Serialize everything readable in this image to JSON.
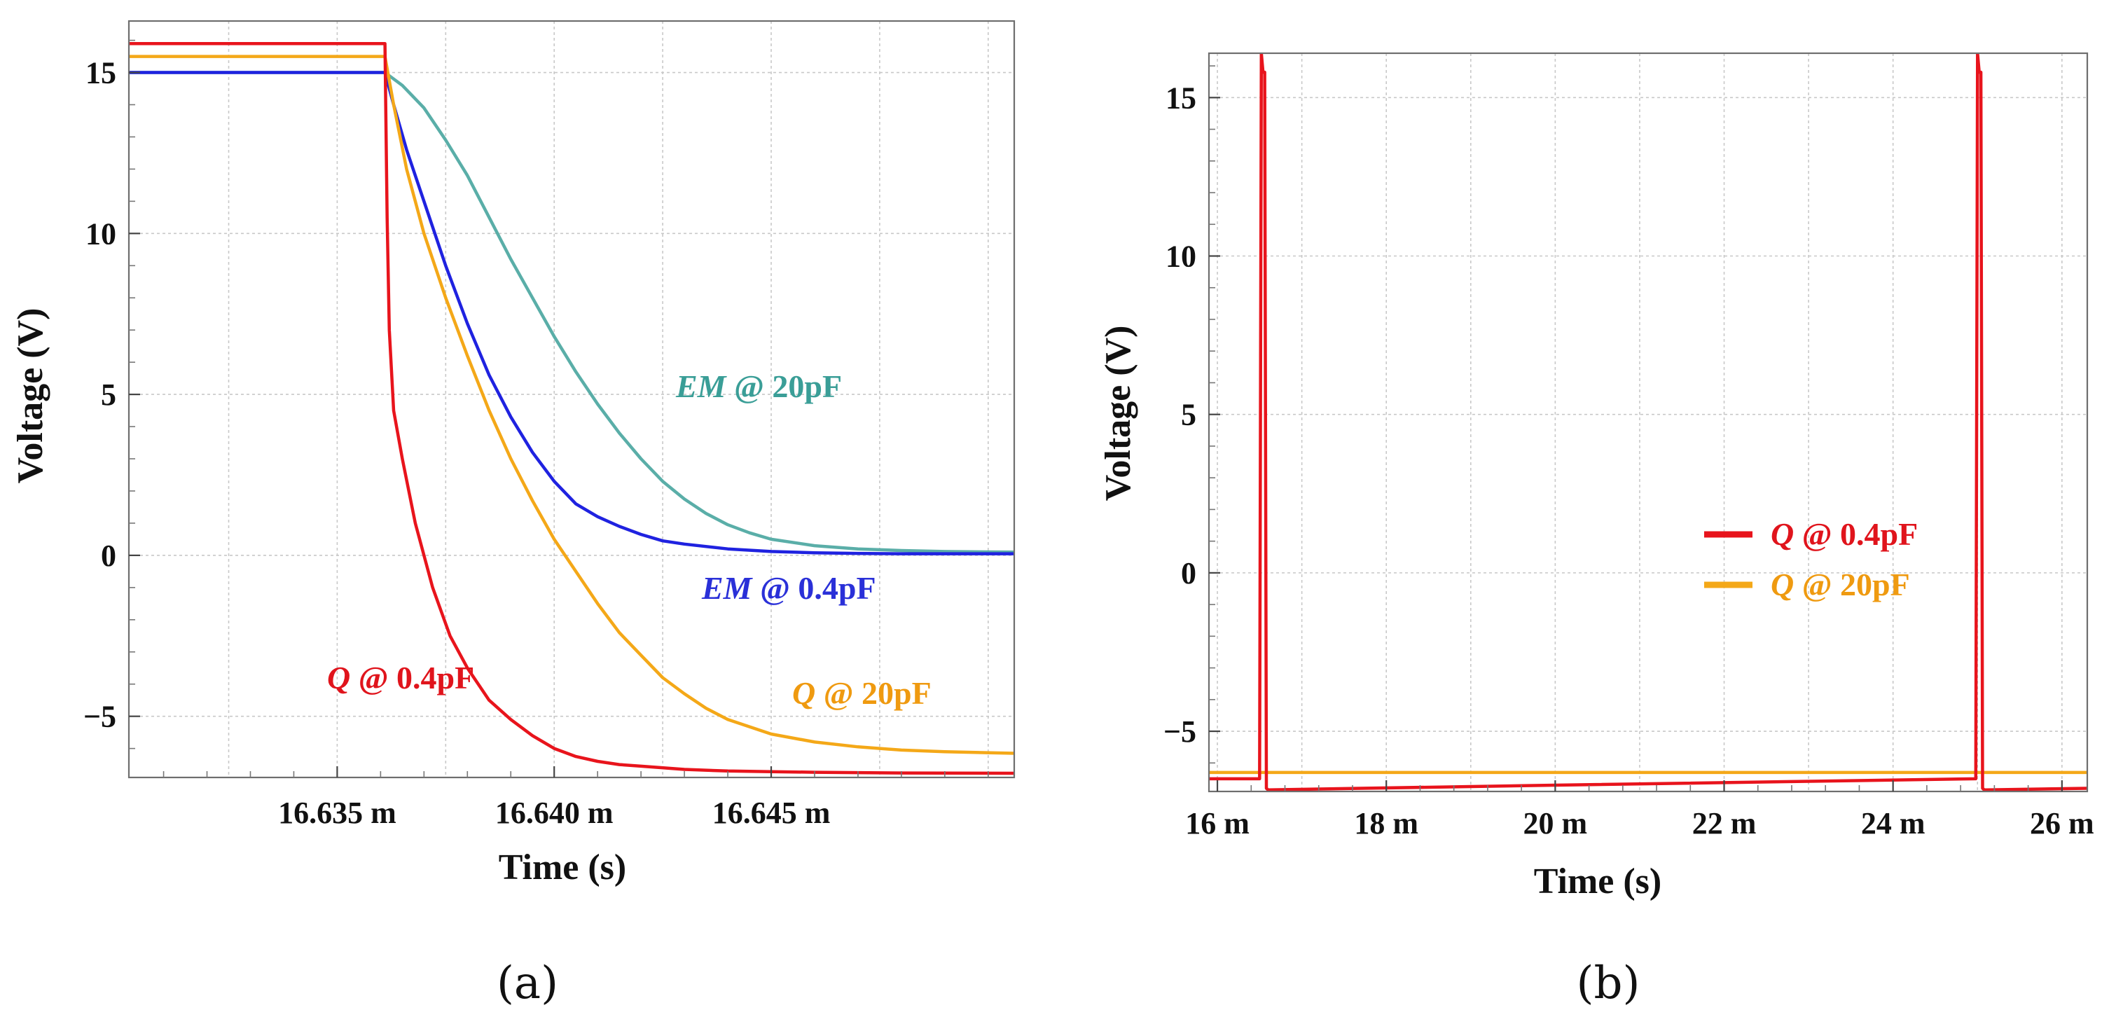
{
  "chart_data": [
    {
      "type": "line",
      "panel_label": "(a)",
      "xlabel": "Time (s)",
      "ylabel": "Voltage (V)",
      "xlim": [
        16.6302,
        16.6506
      ],
      "ylim": [
        -6.9,
        16.6
      ],
      "xticks": [
        16.635,
        16.64,
        16.645
      ],
      "xtick_labels": [
        "16.635 m",
        "16.640 m",
        "16.645 m"
      ],
      "yticks": [
        15,
        10,
        5,
        0,
        -5
      ],
      "ytick_labels": [
        "15",
        "10",
        "5",
        "0",
        "−5"
      ],
      "grid": true,
      "series": [
        {
          "name": "EM @ 20pF",
          "color": "#5aaea8",
          "annotation_parts": [
            "EM",
            " @ 20pF"
          ],
          "x": [
            16.6302,
            16.6361,
            16.6365,
            16.637,
            16.6375,
            16.638,
            16.6385,
            16.639,
            16.6395,
            16.64,
            16.6405,
            16.641,
            16.6415,
            16.642,
            16.6425,
            16.643,
            16.6435,
            16.644,
            16.6445,
            16.645,
            16.646,
            16.647,
            16.648,
            16.649,
            16.6506
          ],
          "values": [
            15.0,
            15.0,
            14.6,
            13.9,
            12.9,
            11.8,
            10.5,
            9.2,
            8.0,
            6.8,
            5.7,
            4.7,
            3.8,
            3.0,
            2.3,
            1.75,
            1.3,
            0.95,
            0.7,
            0.5,
            0.3,
            0.2,
            0.15,
            0.12,
            0.1
          ]
        },
        {
          "name": "EM @ 0.4pF",
          "color": "#1f22e0",
          "annotation_parts": [
            "EM",
            " @ 0.4pF"
          ],
          "x": [
            16.6302,
            16.6361,
            16.6363,
            16.6366,
            16.637,
            16.6375,
            16.638,
            16.6385,
            16.639,
            16.6395,
            16.64,
            16.6405,
            16.641,
            16.6415,
            16.642,
            16.6425,
            16.643,
            16.644,
            16.645,
            16.646,
            16.647,
            16.648,
            16.649,
            16.6506
          ],
          "values": [
            15.0,
            15.0,
            14.0,
            12.6,
            11.0,
            9.0,
            7.2,
            5.6,
            4.3,
            3.2,
            2.3,
            1.6,
            1.2,
            0.9,
            0.65,
            0.45,
            0.35,
            0.2,
            0.12,
            0.08,
            0.06,
            0.05,
            0.05,
            0.05
          ]
        },
        {
          "name": "Q @ 20pF",
          "color": "#f4a818",
          "annotation_parts": [
            "Q",
            " @ 20pF"
          ],
          "x": [
            16.6302,
            16.6361,
            16.6363,
            16.6366,
            16.637,
            16.6375,
            16.638,
            16.6385,
            16.639,
            16.6395,
            16.64,
            16.6405,
            16.641,
            16.6415,
            16.642,
            16.6425,
            16.643,
            16.6435,
            16.644,
            16.645,
            16.646,
            16.647,
            16.648,
            16.649,
            16.6506
          ],
          "values": [
            15.5,
            15.5,
            14.0,
            12.0,
            10.0,
            8.0,
            6.2,
            4.5,
            3.0,
            1.7,
            0.5,
            -0.5,
            -1.5,
            -2.4,
            -3.1,
            -3.8,
            -4.3,
            -4.75,
            -5.1,
            -5.55,
            -5.8,
            -5.95,
            -6.05,
            -6.1,
            -6.15
          ]
        },
        {
          "name": "Q @ 0.4pF",
          "color": "#e8141c",
          "annotation_parts": [
            "Q",
            " @ 0.4pF"
          ],
          "x": [
            16.6302,
            16.6361,
            16.63615,
            16.6362,
            16.6363,
            16.6365,
            16.6368,
            16.6372,
            16.6376,
            16.638,
            16.6385,
            16.639,
            16.6395,
            16.64,
            16.6405,
            16.641,
            16.6415,
            16.642,
            16.643,
            16.644,
            16.645,
            16.646,
            16.647,
            16.648,
            16.6506
          ],
          "values": [
            15.9,
            15.9,
            10.5,
            7.0,
            4.5,
            3.0,
            1.0,
            -1.0,
            -2.5,
            -3.5,
            -4.5,
            -5.1,
            -5.6,
            -6.0,
            -6.25,
            -6.4,
            -6.5,
            -6.55,
            -6.65,
            -6.7,
            -6.72,
            -6.74,
            -6.75,
            -6.76,
            -6.77
          ]
        }
      ]
    },
    {
      "type": "line",
      "panel_label": "(b)",
      "xlabel": "Time (s)",
      "ylabel": "Voltage (V)",
      "xlim": [
        15.9,
        26.3
      ],
      "ylim": [
        -6.9,
        16.4
      ],
      "xticks": [
        16,
        18,
        20,
        22,
        24,
        26
      ],
      "xtick_labels": [
        "16 m",
        "18 m",
        "20 m",
        "22 m",
        "24 m",
        "26 m"
      ],
      "yticks": [
        15,
        10,
        5,
        0,
        -5
      ],
      "ytick_labels": [
        "15",
        "10",
        "5",
        "0",
        "−5"
      ],
      "grid": true,
      "legend_position": "center-right",
      "series": [
        {
          "name": "Q @ 20pF",
          "color": "#f4a818",
          "legend_parts": [
            "Q",
            " @ 20pF"
          ],
          "x": [
            15.9,
            26.3
          ],
          "values": [
            -6.3,
            -6.3
          ]
        },
        {
          "name": "Q @ 0.4pF",
          "color": "#e8141c",
          "legend_parts": [
            "Q",
            " @ 0.4pF"
          ],
          "x": [
            15.9,
            16.5,
            16.52,
            16.54,
            16.56,
            16.58,
            16.6,
            20.0,
            24.98,
            25.0,
            25.02,
            25.04,
            25.06,
            25.08,
            25.1,
            26.3
          ],
          "values": [
            -6.5,
            -6.5,
            16.4,
            15.8,
            15.8,
            -6.8,
            -6.85,
            -6.7,
            -6.5,
            16.4,
            15.8,
            15.8,
            -6.8,
            -6.85,
            -6.85,
            -6.8
          ]
        }
      ]
    }
  ]
}
